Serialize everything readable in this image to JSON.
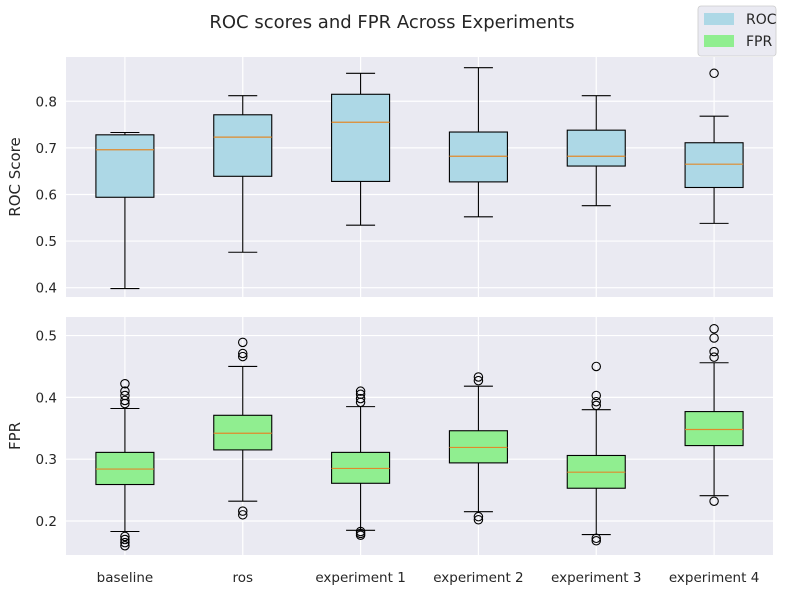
{
  "chart_data": {
    "title": "ROC scores and FPR Across Experiments",
    "type": "box",
    "categories": [
      "baseline",
      "ros",
      "experiment 1",
      "experiment 2",
      "experiment 3",
      "experiment 4"
    ],
    "legend": {
      "position": "top-right",
      "entries": [
        {
          "label": "ROC",
          "color": "#add8e6"
        },
        {
          "label": "FPR",
          "color": "#90ee90"
        }
      ]
    },
    "panels": [
      {
        "id": "roc",
        "ylabel": "ROC Score",
        "ylim": [
          0.38,
          0.895
        ],
        "yticks": [
          0.4,
          0.5,
          0.6,
          0.7,
          0.8
        ],
        "fill": "#add8e6",
        "boxes": [
          {
            "whislo": 0.398,
            "q1": 0.594,
            "med": 0.696,
            "q3": 0.728,
            "whishi": 0.733,
            "fliers": []
          },
          {
            "whislo": 0.476,
            "q1": 0.639,
            "med": 0.723,
            "q3": 0.771,
            "whishi": 0.812,
            "fliers": []
          },
          {
            "whislo": 0.534,
            "q1": 0.628,
            "med": 0.755,
            "q3": 0.815,
            "whishi": 0.86,
            "fliers": []
          },
          {
            "whislo": 0.552,
            "q1": 0.627,
            "med": 0.682,
            "q3": 0.734,
            "whishi": 0.872,
            "fliers": []
          },
          {
            "whislo": 0.576,
            "q1": 0.661,
            "med": 0.682,
            "q3": 0.738,
            "whishi": 0.812,
            "fliers": []
          },
          {
            "whislo": 0.538,
            "q1": 0.615,
            "med": 0.665,
            "q3": 0.711,
            "whishi": 0.768,
            "fliers": [
              0.86
            ]
          }
        ]
      },
      {
        "id": "fpr",
        "ylabel": "FPR",
        "ylim": [
          0.145,
          0.53
        ],
        "yticks": [
          0.2,
          0.3,
          0.4,
          0.5
        ],
        "fill": "#90ee90",
        "boxes": [
          {
            "whislo": 0.183,
            "q1": 0.259,
            "med": 0.284,
            "q3": 0.311,
            "whishi": 0.382,
            "fliers": [
              0.16,
              0.165,
              0.17,
              0.175,
              0.39,
              0.395,
              0.403,
              0.41,
              0.422
            ]
          },
          {
            "whislo": 0.232,
            "q1": 0.315,
            "med": 0.342,
            "q3": 0.371,
            "whishi": 0.45,
            "fliers": [
              0.21,
              0.216,
              0.466,
              0.471,
              0.489
            ]
          },
          {
            "whislo": 0.185,
            "q1": 0.261,
            "med": 0.285,
            "q3": 0.311,
            "whishi": 0.385,
            "fliers": [
              0.177,
              0.18,
              0.183,
              0.392,
              0.398,
              0.405,
              0.41
            ]
          },
          {
            "whislo": 0.215,
            "q1": 0.294,
            "med": 0.319,
            "q3": 0.346,
            "whishi": 0.418,
            "fliers": [
              0.202,
              0.207,
              0.427,
              0.433
            ]
          },
          {
            "whislo": 0.178,
            "q1": 0.253,
            "med": 0.279,
            "q3": 0.306,
            "whishi": 0.38,
            "fliers": [
              0.168,
              0.172,
              0.387,
              0.393,
              0.403,
              0.45
            ]
          },
          {
            "whislo": 0.241,
            "q1": 0.322,
            "med": 0.348,
            "q3": 0.377,
            "whishi": 0.456,
            "fliers": [
              0.232,
              0.465,
              0.474,
              0.496,
              0.511
            ]
          }
        ]
      }
    ]
  }
}
